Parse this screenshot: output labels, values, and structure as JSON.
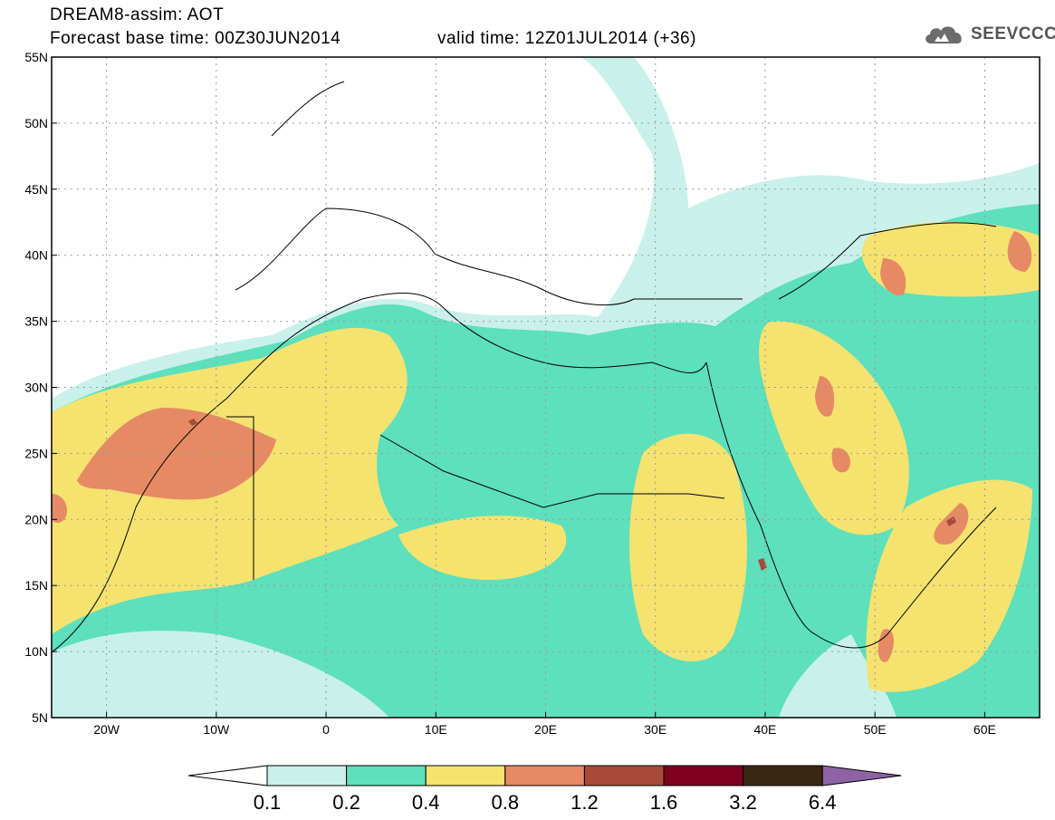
{
  "header": {
    "line1": "DREAM8-assim: AOT",
    "line2": "Forecast base time: 00Z30JUN2014",
    "valid": "valid time: 12Z01JUL2014 (+36)",
    "logo_text": "SEEVCCC"
  },
  "map": {
    "lon_range": [
      -25,
      65
    ],
    "lat_range": [
      5,
      55
    ],
    "lat_ticks": [
      {
        "value": 55,
        "label": "55N"
      },
      {
        "value": 50,
        "label": "50N"
      },
      {
        "value": 45,
        "label": "45N"
      },
      {
        "value": 40,
        "label": "40N"
      },
      {
        "value": 35,
        "label": "35N"
      },
      {
        "value": 30,
        "label": "30N"
      },
      {
        "value": 25,
        "label": "25N"
      },
      {
        "value": 20,
        "label": "20N"
      },
      {
        "value": 15,
        "label": "15N"
      },
      {
        "value": 10,
        "label": "10N"
      },
      {
        "value": 5,
        "label": "5N"
      }
    ],
    "lon_ticks": [
      {
        "value": -20,
        "label": "20W"
      },
      {
        "value": -10,
        "label": "10W"
      },
      {
        "value": 0,
        "label": "0"
      },
      {
        "value": 10,
        "label": "10E"
      },
      {
        "value": 20,
        "label": "20E"
      },
      {
        "value": 30,
        "label": "30E"
      },
      {
        "value": 40,
        "label": "40E"
      },
      {
        "value": 50,
        "label": "50E"
      },
      {
        "value": 60,
        "label": "60E"
      }
    ],
    "grid": true
  },
  "colorbar": {
    "levels": [
      "0.1",
      "0.2",
      "0.4",
      "0.8",
      "1.2",
      "1.6",
      "3.2",
      "6.4"
    ],
    "colors": [
      "#ffffff",
      "#c9f1ea",
      "#5de0bb",
      "#f5e26f",
      "#e58a64",
      "#a84a38",
      "#800020",
      "#3b2612",
      "#8e63a6"
    ]
  },
  "contour_colors": {
    "c01": "#c9f1ea",
    "c02": "#5de0bb",
    "c04": "#f5e26f",
    "c08": "#e58a64",
    "c12": "#a84a38"
  }
}
